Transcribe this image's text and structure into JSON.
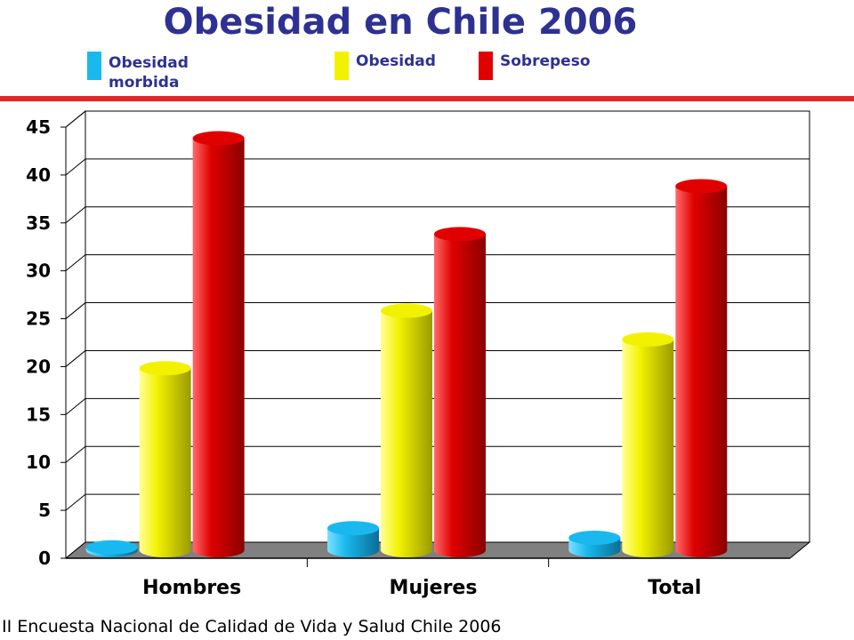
{
  "chart_data": {
    "type": "bar",
    "title": "Obesidad en Chile 2006",
    "categories": [
      "Hombres",
      "Mujeres",
      "Total"
    ],
    "series": [
      {
        "name": "Obesidad morbida",
        "color": "#19b9ef",
        "values": [
          0.3,
          2.3,
          1.3
        ]
      },
      {
        "name": "Obesidad",
        "color": "#f2f200",
        "values": [
          19,
          25,
          22
        ]
      },
      {
        "name": "Sobrepeso",
        "color": "#e00000",
        "values": [
          43,
          33,
          38
        ]
      }
    ],
    "ylim": [
      0,
      45
    ],
    "yticks": [
      0,
      5,
      10,
      15,
      20,
      25,
      30,
      35,
      40,
      45
    ],
    "grid": true,
    "legend_position": "top",
    "source": "II Encuesta Nacional de Calidad de Vida y Salud Chile 2006"
  },
  "legend": {
    "morbida_line1": "Obesidad",
    "morbida_line2": "morbida",
    "obesidad": "Obesidad",
    "sobrepeso": "Sobrepeso"
  }
}
